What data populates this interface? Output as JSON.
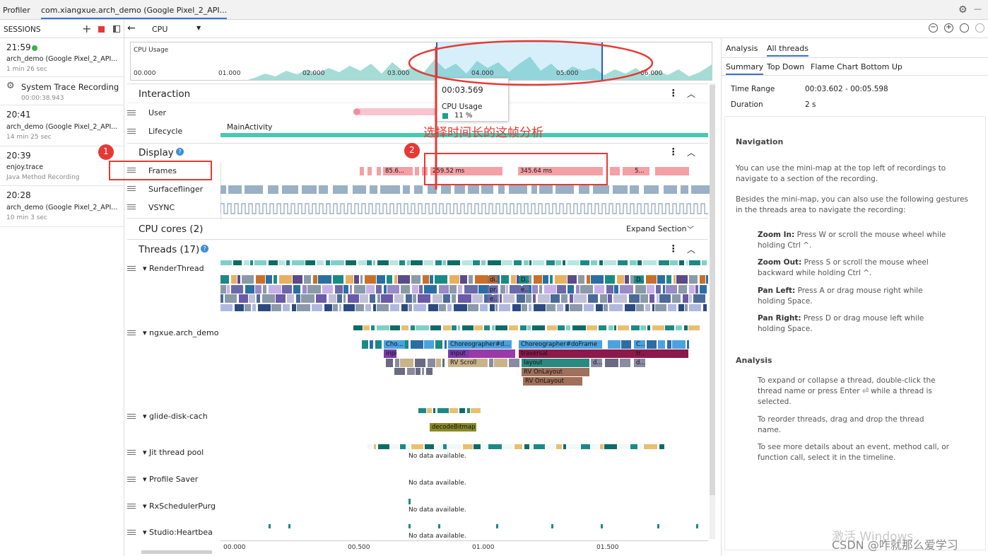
{
  "app": {
    "title": "Profiler",
    "tab": "com.xiangxue.arch_demo (Google Pixel_2_API..."
  },
  "sessions": {
    "header": "SESSIONS",
    "items": [
      {
        "time": "21:59",
        "name": "arch_demo (Google Pixel_2_API...",
        "duration": "1 min 26 sec"
      },
      {
        "time": "",
        "name": "System Trace Recording",
        "duration": "00:00:38.943"
      },
      {
        "time": "20:41",
        "name": "arch_demo (Google Pixel_2_API...",
        "duration": "14 min 25 sec"
      },
      {
        "time": "20:39",
        "name": "enjoy.trace",
        "duration": "Java Method Recording"
      },
      {
        "time": "20:28",
        "name": "arch_demo (Google Pixel_2_API...",
        "duration": "10 min 3 sec"
      }
    ]
  },
  "toolbar": {
    "cpu": "CPU"
  },
  "minimap": {
    "label": "CPU Usage",
    "ticks": [
      "00.000",
      "01.000",
      "02.000",
      "03.000",
      "04.000",
      "05.000",
      "06.000"
    ]
  },
  "tooltip": {
    "time": "00:03.569",
    "label": "CPU Usage",
    "value": "11 %"
  },
  "interaction": {
    "title": "Interaction",
    "user": "User",
    "lifecycle": "Lifecycle",
    "activity": "MainActivity"
  },
  "display": {
    "title": "Display",
    "frames": "Frames",
    "surface": "Surfaceflinger",
    "vsync": "VSYNC",
    "frame_labels": [
      "85.6...",
      "259.52 ms",
      "345.64 ms",
      "5..."
    ]
  },
  "cpu_cores": {
    "title": "CPU cores (2)",
    "expand": "Expand Section"
  },
  "threads": {
    "title": "Threads (17)",
    "items": [
      {
        "name": "RenderThread"
      },
      {
        "name": "ngxue.arch_demo"
      },
      {
        "name": "glide-disk-cach"
      },
      {
        "name": "Jit thread pool",
        "msg": "No data available."
      },
      {
        "name": "Profile Saver",
        "msg": "No data available."
      },
      {
        "name": "RxSchedulerPurg",
        "msg": "No data available."
      },
      {
        "name": "Studio:Heartbea",
        "msg": "No data available."
      }
    ],
    "render_labels": [
      "di...",
      "pr...",
      "e...",
      "D...",
      "e...",
      "D..."
    ],
    "main_labels": [
      "Cho...",
      "Choreographer#d...",
      "Choreographer#doFrame",
      "C...",
      "input",
      "traversal",
      "tr...",
      "RV Scroll",
      "layout",
      "d...",
      "d...",
      "RV OnLayout",
      "RV OnLayout"
    ],
    "glide_label": "decodeBitmap"
  },
  "bottom_ticks": [
    "00.000",
    "00.500",
    "01.000",
    "01.500"
  ],
  "annotation": {
    "text": "选择时间长的这帧分析",
    "n1": "1",
    "n2": "2"
  },
  "right": {
    "tabs": [
      "Analysis",
      "All threads"
    ],
    "subtabs": [
      "Summary",
      "Top Down",
      "Flame Chart",
      "Bottom Up"
    ],
    "time_range_label": "Time Range",
    "time_range": "00:03.602 - 00:05.598",
    "duration_label": "Duration",
    "duration": "2 s",
    "nav_title": "Navigation",
    "nav1": "You can use the mini-map at the top left of recordings to navigate to a section of the recording.",
    "nav2": "Besides the mini-map, you can also use the following gestures in the threads area to navigate the recording:",
    "zin_k": "Zoom In:",
    "zin": "Press W or scroll the mouse wheel while holding Ctrl ^.",
    "zout_k": "Zoom Out:",
    "zout": "Press S or scroll the mouse wheel backward while holding Ctrl ^.",
    "pl_k": "Pan Left:",
    "pl": "Press A or drag mouse right while holding Space.",
    "pr_k": "Pan Right:",
    "pr": "Press D or drag mouse left while holding Space.",
    "an_title": "Analysis",
    "an1": "To expand or collapse a thread, double-click the thread name or press Enter ⏎ while a thread is selected.",
    "an2": "To reorder threads, drag and drop the thread name.",
    "an3": "To see more details about an event, method call, or function call, select it in the timeline."
  },
  "watermark": {
    "win": "激活 Windows",
    "csdn": "CSDN @咋就那么爱学习"
  },
  "colors": {
    "teal": "#1b8a85",
    "red": "#e53935",
    "frame": "#f4a0a6",
    "blue": "#4aa3df"
  }
}
